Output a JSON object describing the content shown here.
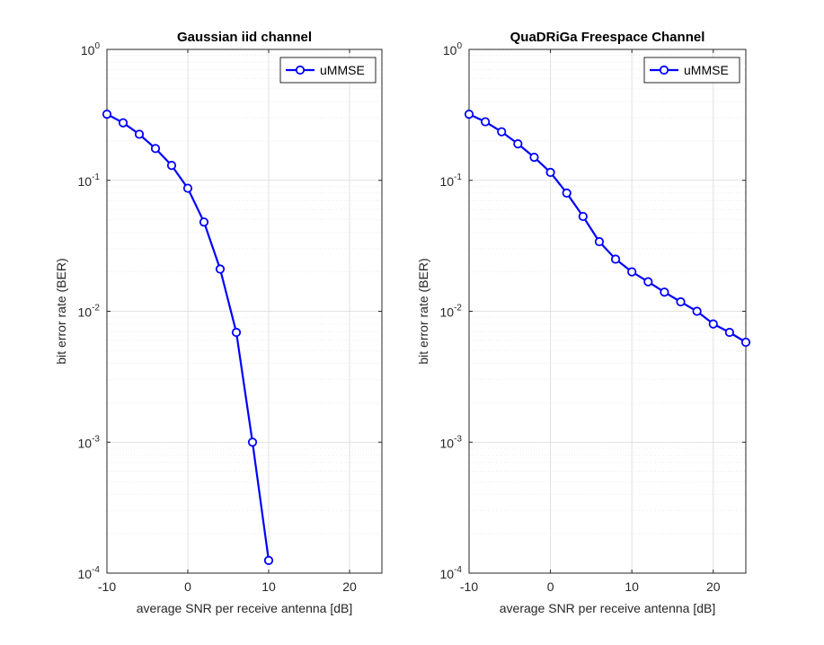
{
  "chart_data": [
    {
      "type": "line",
      "title": "Gaussian iid channel",
      "xlabel": "average SNR per receive antenna [dB]",
      "ylabel": "bit error rate (BER)",
      "xlim": [
        -10,
        24
      ],
      "ylim": [
        0.0001,
        1
      ],
      "yscale": "log",
      "grid": true,
      "minor_grid": true,
      "legend_position": "top-right",
      "x_ticks": [
        -10,
        0,
        10,
        20
      ],
      "y_ticks": [
        0.0001,
        0.001,
        0.01,
        0.1,
        1
      ],
      "series": [
        {
          "name": "uMMSE",
          "color": "#0000ff",
          "marker": "circle",
          "x": [
            -10,
            -8,
            -6,
            -4,
            -2,
            0,
            2,
            4,
            6,
            8,
            10
          ],
          "y": [
            0.32,
            0.275,
            0.225,
            0.175,
            0.13,
            0.087,
            0.048,
            0.021,
            0.0069,
            0.001,
            0.000125
          ]
        }
      ]
    },
    {
      "type": "line",
      "title": "QuaDRiGa Freespace Channel",
      "xlabel": "average SNR per receive antenna [dB]",
      "ylabel": "bit error rate (BER)",
      "xlim": [
        -10,
        24
      ],
      "ylim": [
        0.0001,
        1
      ],
      "yscale": "log",
      "grid": true,
      "minor_grid": true,
      "legend_position": "top-right",
      "x_ticks": [
        -10,
        0,
        10,
        20
      ],
      "y_ticks": [
        0.0001,
        0.001,
        0.01,
        0.1,
        1
      ],
      "series": [
        {
          "name": "uMMSE",
          "color": "#0000ff",
          "marker": "circle",
          "x": [
            -10,
            -8,
            -6,
            -4,
            -2,
            0,
            2,
            4,
            6,
            8,
            10,
            12,
            14,
            16,
            18,
            20,
            22,
            24
          ],
          "y": [
            0.32,
            0.28,
            0.235,
            0.19,
            0.15,
            0.115,
            0.08,
            0.053,
            0.034,
            0.025,
            0.02,
            0.0168,
            0.014,
            0.0118,
            0.01,
            0.008,
            0.0069,
            0.0058
          ]
        }
      ]
    }
  ]
}
